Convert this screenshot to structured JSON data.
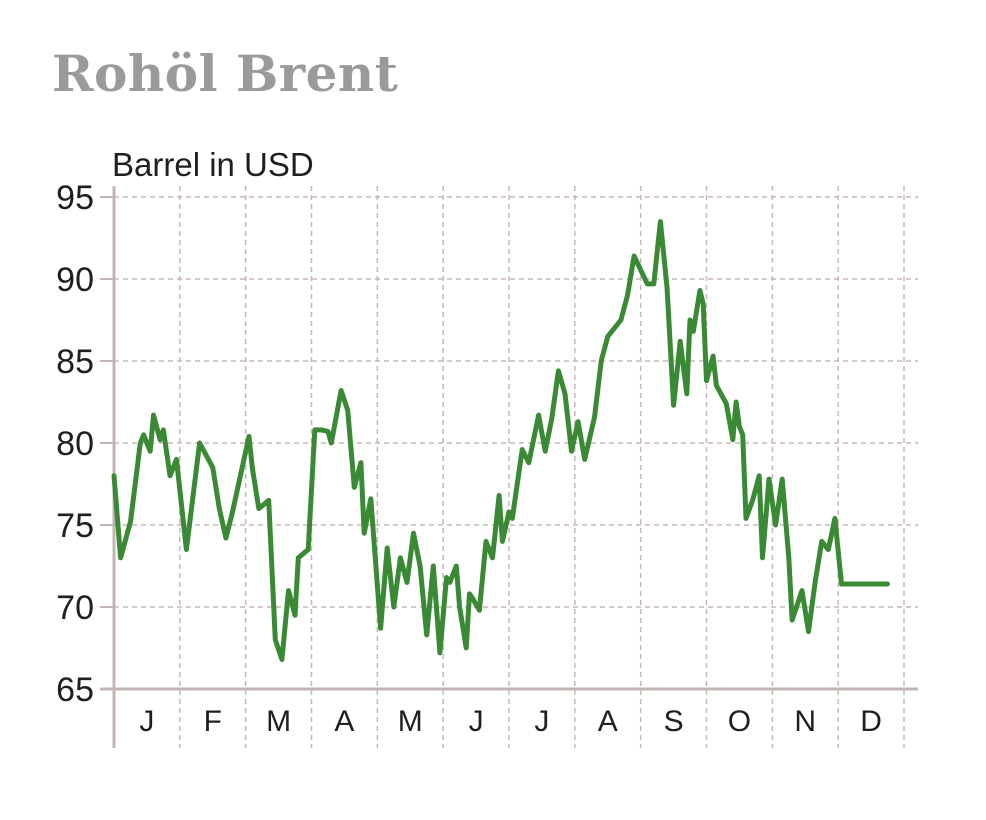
{
  "title": "Rohöl Brent",
  "chart_data": {
    "type": "line",
    "title": "Rohöl Brent",
    "ylabel": "Barrel in USD",
    "xlabel": "",
    "ylim": [
      65,
      95
    ],
    "yticks": [
      65,
      70,
      75,
      80,
      85,
      90,
      95
    ],
    "categories": [
      "J",
      "F",
      "M",
      "A",
      "M",
      "J",
      "J",
      "A",
      "S",
      "O",
      "N",
      "D"
    ],
    "grid": true,
    "line_color": "#3a8a35",
    "grid_color": "#c9b7b7",
    "axis_color": "#c4b3b3",
    "series": [
      {
        "x": [
          0.0,
          0.1,
          0.25,
          0.4,
          0.45,
          0.55,
          0.6,
          0.7,
          0.75,
          0.85,
          0.95,
          1.1,
          1.3,
          1.5,
          1.6,
          1.7,
          1.8,
          2.05,
          2.1,
          2.2,
          2.35,
          2.45,
          2.55,
          2.65,
          2.75,
          2.8,
          2.95,
          3.05,
          3.15,
          3.25,
          3.3,
          3.45,
          3.55,
          3.65,
          3.75,
          3.8,
          3.9,
          4.05,
          4.15,
          4.25,
          4.35,
          4.45,
          4.55,
          4.65,
          4.75,
          4.85,
          4.95,
          5.05,
          5.1,
          5.2,
          5.25,
          5.35,
          5.4,
          5.45,
          5.55,
          5.65,
          5.75,
          5.85,
          5.9,
          6.0,
          6.05,
          6.2,
          6.3,
          6.45,
          6.55,
          6.65,
          6.75,
          6.85,
          6.95,
          7.05,
          7.15,
          7.3,
          7.4,
          7.5,
          7.7,
          7.8,
          7.9,
          8.1,
          8.2,
          8.3,
          8.4,
          8.5,
          8.6,
          8.7,
          8.75,
          8.8,
          8.9,
          8.95,
          9.0,
          9.1,
          9.15,
          9.3,
          9.4,
          9.45,
          9.5,
          9.55,
          9.6,
          9.7,
          9.8,
          9.85,
          9.95,
          10.05,
          10.15,
          10.25,
          10.3,
          10.45,
          10.55,
          10.65,
          10.75,
          10.85,
          10.95,
          11.05,
          11.2,
          11.3,
          11.45,
          11.55,
          11.65,
          11.75,
          12.0
        ],
        "values": [
          78.0,
          73.0,
          75.2,
          80.0,
          80.5,
          79.5,
          81.7,
          80.2,
          80.8,
          78.0,
          79.0,
          73.5,
          80.0,
          78.5,
          76.0,
          74.2,
          75.8,
          80.4,
          78.5,
          76.0,
          76.5,
          68.0,
          66.8,
          71.0,
          69.5,
          73.0,
          73.5,
          80.8,
          80.8,
          80.7,
          80.0,
          83.2,
          82.0,
          77.3,
          78.8,
          74.5,
          76.6,
          68.7,
          73.6,
          70.0,
          73.0,
          71.5,
          74.5,
          72.5,
          68.3,
          72.5,
          67.2,
          71.8,
          71.5,
          72.5,
          70.0,
          67.5,
          70.8,
          70.5,
          69.8,
          74.0,
          73.0,
          76.8,
          74.0,
          75.8,
          75.4,
          79.6,
          78.8,
          81.7,
          79.5,
          81.5,
          84.4,
          83.0,
          79.5,
          81.3,
          79.0,
          81.6,
          85.0,
          86.5,
          87.5,
          89.0,
          91.4,
          89.7,
          89.7,
          93.5,
          89.5,
          82.3,
          86.2,
          83.0,
          87.5,
          86.8,
          89.3,
          88.5,
          83.8,
          85.3,
          83.5,
          82.4,
          80.2,
          82.5,
          81.0,
          80.5,
          75.4,
          76.5,
          78.0,
          73.0,
          77.8,
          75.0,
          77.8,
          73.0,
          69.2,
          71.0,
          68.5,
          71.5,
          74.0,
          73.5,
          75.4,
          71.4,
          71.4,
          71.4,
          71.4,
          71.4,
          71.4,
          71.4,
          71.4
        ]
      }
    ]
  }
}
